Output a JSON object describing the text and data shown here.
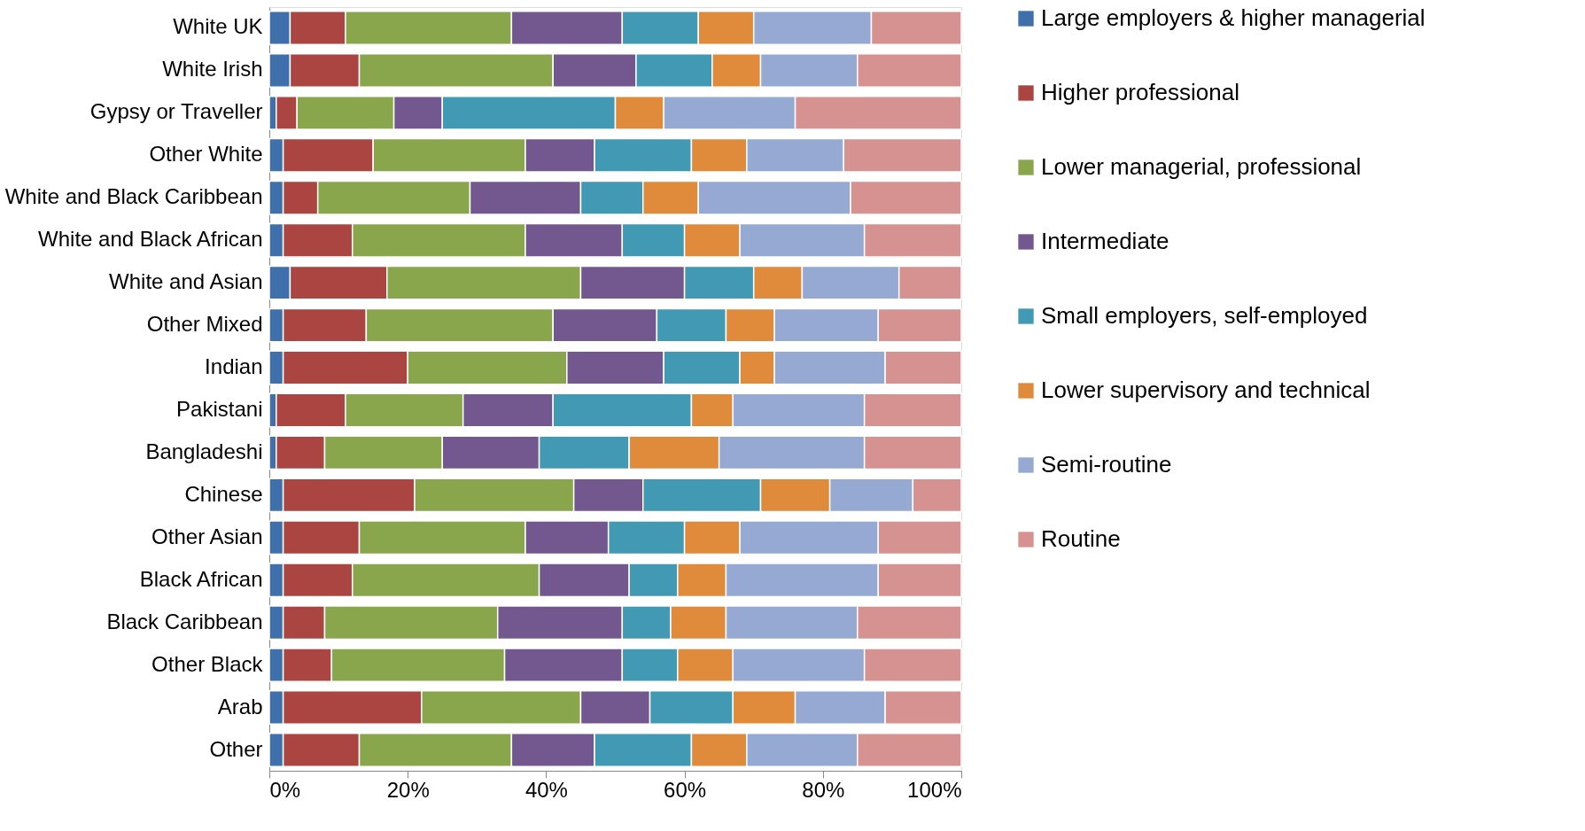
{
  "chart_data": {
    "type": "bar",
    "orientation": "horizontal",
    "stacked": true,
    "categories": [
      "White UK",
      "White Irish",
      "Gypsy or Traveller",
      "Other White",
      "White and Black Caribbean",
      "White and Black African",
      "White and Asian",
      "Other Mixed",
      "Indian",
      "Pakistani",
      "Bangladeshi",
      "Chinese",
      "Other Asian",
      "Black African",
      "Black Caribbean",
      "Other Black",
      "Arab",
      "Other"
    ],
    "series": [
      {
        "name": "Large employers & higher managerial",
        "color": "#4070ab",
        "values": [
          3,
          3,
          1,
          2,
          2,
          2,
          3,
          2,
          2,
          1,
          1,
          2,
          2,
          2,
          2,
          2,
          2,
          2
        ]
      },
      {
        "name": "Higher professional",
        "color": "#aa4542",
        "values": [
          8,
          10,
          3,
          13,
          5,
          10,
          14,
          12,
          18,
          10,
          7,
          19,
          11,
          10,
          6,
          7,
          20,
          11
        ]
      },
      {
        "name": "Lower managerial, professional",
        "color": "#8aa64d",
        "values": [
          24,
          28,
          14,
          22,
          22,
          25,
          28,
          27,
          23,
          17,
          17,
          23,
          24,
          27,
          25,
          25,
          23,
          22
        ]
      },
      {
        "name": "Intermediate",
        "color": "#73588f",
        "values": [
          16,
          12,
          7,
          10,
          16,
          14,
          15,
          15,
          14,
          13,
          14,
          10,
          12,
          13,
          18,
          17,
          10,
          12
        ]
      },
      {
        "name": "Small employers, self-employed",
        "color": "#4299b4",
        "values": [
          11,
          11,
          25,
          14,
          9,
          9,
          10,
          10,
          11,
          20,
          13,
          17,
          11,
          7,
          7,
          8,
          12,
          14
        ]
      },
      {
        "name": "Lower supervisory and technical",
        "color": "#e08a3c",
        "values": [
          8,
          7,
          7,
          8,
          8,
          8,
          7,
          7,
          5,
          6,
          13,
          10,
          8,
          7,
          8,
          8,
          9,
          8
        ]
      },
      {
        "name": "Semi-routine",
        "color": "#95a9d3",
        "values": [
          17,
          14,
          19,
          14,
          22,
          18,
          14,
          15,
          16,
          19,
          21,
          12,
          20,
          22,
          19,
          19,
          13,
          16
        ]
      },
      {
        "name": "Routine",
        "color": "#d69191",
        "values": [
          13,
          15,
          24,
          17,
          16,
          14,
          9,
          12,
          11,
          14,
          14,
          7,
          12,
          12,
          15,
          14,
          11,
          15
        ]
      }
    ],
    "xlim": [
      0,
      100
    ],
    "xticks": [
      {
        "value": 0,
        "label": "0%"
      },
      {
        "value": 20,
        "label": "20%"
      },
      {
        "value": 40,
        "label": "40%"
      },
      {
        "value": 60,
        "label": "60%"
      },
      {
        "value": 80,
        "label": "80%"
      },
      {
        "value": 100,
        "label": "100%"
      }
    ],
    "grid": false,
    "legend": "right"
  }
}
